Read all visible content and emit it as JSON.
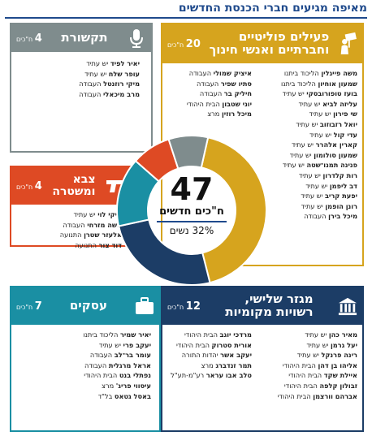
{
  "title": "מאיפה מגיעים חברי הכנסת החדשים",
  "center": {
    "total": "47",
    "label": "ח\"כים חדשים",
    "women_pct": "32%",
    "women_label": "נשים"
  },
  "chart_data": {
    "type": "pie",
    "categories": [
      "פעילים פוליטיים וחברתיים ואנשי חינוך",
      "מגזר שלישי, רשויות מקומיות",
      "עסקים",
      "צבא ומשטרה",
      "תקשורת"
    ],
    "values": [
      20,
      12,
      7,
      4,
      4
    ],
    "colors": [
      "#d6a41e",
      "#1c3d66",
      "#1a8fa3",
      "#de4a24",
      "#7f8c8d"
    ],
    "total": 47
  },
  "categories": {
    "communication": {
      "name": "תקשורת",
      "count": "4",
      "unit": "ח\"כים",
      "icon": "microphone-icon",
      "members": [
        {
          "name": "יאיר לפיד",
          "party": "יש עתיד"
        },
        {
          "name": "עופר שלח",
          "party": "יש עתיד"
        },
        {
          "name": "מיקי רוזנטל",
          "party": "העבודה"
        },
        {
          "name": "מרב מיכאלי",
          "party": "העבודה"
        }
      ]
    },
    "political": {
      "name_line1": "פעילים פוליטיים",
      "name_line2": "וחברתיים ואנשי חינוך",
      "count": "20",
      "unit": "ח\"כים",
      "icon": "protester-icon",
      "members_right": [
        {
          "name": "משה פייגלין",
          "party": "הליכוד ביתנו"
        },
        {
          "name": "שמעון אוחיון",
          "party": "הליכוד ביתנו"
        },
        {
          "name": "בועז טופורובסקי",
          "party": "יש עתיד"
        },
        {
          "name": "עליזה לביא",
          "party": "יש עתיד"
        },
        {
          "name": "שי פירון",
          "party": "יש עתיד"
        },
        {
          "name": "יואל רזבוזוב",
          "party": "יש עתיד"
        },
        {
          "name": "עדי קול",
          "party": "יש עתיד"
        },
        {
          "name": "קארין אלהרר",
          "party": "יש עתיד"
        },
        {
          "name": "שמעון סולומון",
          "party": "יש עתיד"
        },
        {
          "name": "פנינה תמנו־שטה",
          "party": "יש עתיד"
        },
        {
          "name": "רות קלדרון",
          "party": "יש עתיד"
        },
        {
          "name": "דב ליפמן",
          "party": "יש עתיד"
        },
        {
          "name": "יפעת קריב",
          "party": "יש עתיד"
        },
        {
          "name": "רונן הופמן",
          "party": "יש עתיד"
        },
        {
          "name": "מיכל בירן",
          "party": "העבודה"
        }
      ],
      "members_left": [
        {
          "name": "איציק שמולי",
          "party": "העבודה"
        },
        {
          "name": "סתיו שפיר",
          "party": "העבודה"
        },
        {
          "name": "חיליק בר",
          "party": "העבודה"
        },
        {
          "name": "יוני שטבון",
          "party": "הבית היהודי"
        },
        {
          "name": "מיכל רוזין",
          "party": "מרצ"
        }
      ]
    },
    "security": {
      "name_line1": "צבא",
      "name_line2": "ומשטרה",
      "count": "4",
      "unit": "ח\"כים",
      "icon": "pistol-icon",
      "members": [
        {
          "name": "מיקי לוי",
          "party": "יש עתיד"
        },
        {
          "name": "משה מזרחי",
          "party": "העבודה"
        },
        {
          "name": "אלעזר שטרן",
          "party": "התנועה"
        },
        {
          "name": "דוד צור",
          "party": "התנועה"
        }
      ]
    },
    "business": {
      "name": "עסקים",
      "count": "7",
      "unit": "ח\"כים",
      "icon": "briefcase-icon",
      "members": [
        {
          "name": "יאיר שמיר",
          "party": "הליכוד ביתנו"
        },
        {
          "name": "יעקב פרי",
          "party": "יש עתיד"
        },
        {
          "name": "עומר בר־לב",
          "party": "העבודה"
        },
        {
          "name": "אראל מרגלית",
          "party": "העבודה"
        },
        {
          "name": "נפתלי בנט",
          "party": "הבית היהודי"
        },
        {
          "name": "עיסווי פריג'",
          "party": "מרצ"
        },
        {
          "name": "באסל גטאס",
          "party": "בל\"ד"
        }
      ]
    },
    "local": {
      "name_line1": "מגזר שלישי,",
      "name_line2": "רשויות מקומיות",
      "count": "12",
      "unit": "ח\"כים",
      "icon": "townhall-icon",
      "members_right": [
        {
          "name": "מאיר כהן",
          "party": "יש עתיד"
        },
        {
          "name": "יעל גרמן",
          "party": "יש עתיד"
        },
        {
          "name": "רינה פרנקל",
          "party": "יש עתיד"
        },
        {
          "name": "אליהו בן דהן",
          "party": "הבית היהודי"
        },
        {
          "name": "איילת שקד",
          "party": "הבית היהודי"
        },
        {
          "name": "זבולון קלפה",
          "party": "הבית היהודי"
        },
        {
          "name": "אברהם וורצמן",
          "party": "הבית היהודי"
        }
      ],
      "members_left": [
        {
          "name": "מרדכי יוגב",
          "party": "הבית היהודי"
        },
        {
          "name": "אורית סטרוק",
          "party": "הבית היהודי"
        },
        {
          "name": "יעקב אשר",
          "party": "יהדות התורה"
        },
        {
          "name": "תמר זנדברג",
          "party": "מרצ"
        },
        {
          "name": "טלב אבו עראר",
          "party": "רע\"מ-תע\"ל"
        }
      ]
    }
  }
}
